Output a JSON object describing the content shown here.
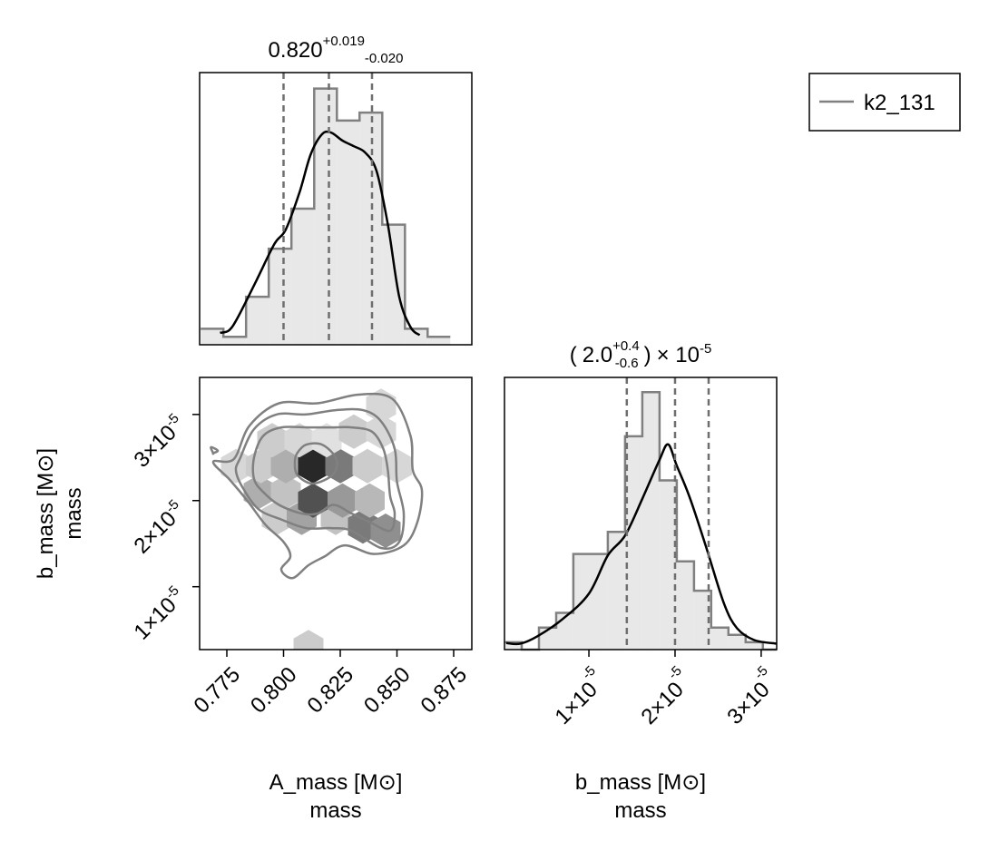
{
  "legend": {
    "label": "k2_131",
    "color": "#808080"
  },
  "chart_data": [
    {
      "type": "histogram",
      "panel": "A_mass marginal",
      "title": {
        "value": "0.820",
        "plus": "+0.019",
        "minus": "-0.020"
      },
      "xlim": [
        0.763,
        0.883
      ],
      "bin_edges": [
        0.7635,
        0.7735,
        0.7835,
        0.7935,
        0.8035,
        0.8135,
        0.8235,
        0.8335,
        0.8435,
        0.8535,
        0.8635,
        0.8735
      ],
      "bin_heights": [
        2,
        1,
        6,
        12,
        17,
        32,
        28,
        29,
        15,
        2,
        1
      ],
      "kde": [
        [
          0.772,
          1.5
        ],
        [
          0.776,
          1.8
        ],
        [
          0.78,
          3.5
        ],
        [
          0.788,
          8
        ],
        [
          0.796,
          12.6
        ],
        [
          0.801,
          14.4
        ],
        [
          0.807,
          19
        ],
        [
          0.812,
          23.8
        ],
        [
          0.817,
          26.3
        ],
        [
          0.821,
          26.5
        ],
        [
          0.826,
          25.5
        ],
        [
          0.831,
          24.8
        ],
        [
          0.836,
          24
        ],
        [
          0.841,
          21.7
        ],
        [
          0.846,
          15
        ],
        [
          0.851,
          6
        ],
        [
          0.856,
          2.2
        ],
        [
          0.86,
          1.2
        ]
      ],
      "quantile_lines": [
        0.8,
        0.82,
        0.839
      ],
      "color": "#808080"
    },
    {
      "type": "heatmap",
      "panel": "A_mass vs b_mass joint",
      "hexbin_cells": [
        {
          "x": 0.811,
          "y": 3e-06,
          "density": 0.15
        },
        {
          "x": 0.797,
          "y": 1.8e-05,
          "density": 0.15
        },
        {
          "x": 0.808,
          "y": 1.8e-05,
          "density": 0.35
        },
        {
          "x": 0.823,
          "y": 1.8e-05,
          "density": 0.2
        },
        {
          "x": 0.835,
          "y": 1.7e-05,
          "density": 0.55
        },
        {
          "x": 0.845,
          "y": 1.65e-05,
          "density": 0.45
        },
        {
          "x": 0.789,
          "y": 2.1e-05,
          "density": 0.3
        },
        {
          "x": 0.801,
          "y": 2.1e-05,
          "density": 0.2
        },
        {
          "x": 0.813,
          "y": 2e-05,
          "density": 0.75
        },
        {
          "x": 0.826,
          "y": 2e-05,
          "density": 0.4
        },
        {
          "x": 0.838,
          "y": 2e-05,
          "density": 0.25
        },
        {
          "x": 0.779,
          "y": 2.4e-05,
          "density": 0.1
        },
        {
          "x": 0.79,
          "y": 2.4e-05,
          "density": 0.15
        },
        {
          "x": 0.801,
          "y": 2.4e-05,
          "density": 0.3
        },
        {
          "x": 0.813,
          "y": 2.4e-05,
          "density": 0.95
        },
        {
          "x": 0.825,
          "y": 2.4e-05,
          "density": 0.55
        },
        {
          "x": 0.837,
          "y": 2.4e-05,
          "density": 0.15
        },
        {
          "x": 0.85,
          "y": 2.4e-05,
          "density": 0.1
        },
        {
          "x": 0.795,
          "y": 2.7e-05,
          "density": 0.15
        },
        {
          "x": 0.807,
          "y": 2.7e-05,
          "density": 0.1
        },
        {
          "x": 0.819,
          "y": 2.7e-05,
          "density": 0.05
        },
        {
          "x": 0.831,
          "y": 2.8e-05,
          "density": 0.15
        },
        {
          "x": 0.843,
          "y": 2.8e-05,
          "density": 0.1
        },
        {
          "x": 0.843,
          "y": 3.1e-05,
          "density": 0.1
        }
      ],
      "contours": [
        [
          [
            0.806,
            2.55e-05
          ],
          [
            0.81,
            2.65e-05
          ],
          [
            0.817,
            2.65e-05
          ],
          [
            0.823,
            2.5e-05
          ],
          [
            0.823,
            2.35e-05
          ],
          [
            0.819,
            2.25e-05
          ],
          [
            0.812,
            2.2e-05
          ],
          [
            0.806,
            2.3e-05
          ],
          [
            0.805,
            2.45e-05
          ]
        ],
        [
          [
            0.787,
            2.5e-05
          ],
          [
            0.791,
            2.75e-05
          ],
          [
            0.799,
            2.85e-05
          ],
          [
            0.811,
            2.85e-05
          ],
          [
            0.822,
            2.85e-05
          ],
          [
            0.83,
            2.85e-05
          ],
          [
            0.839,
            2.8e-05
          ],
          [
            0.844,
            2.6e-05
          ],
          [
            0.846,
            2.35e-05
          ],
          [
            0.847,
            2.05e-05
          ],
          [
            0.849,
            1.85e-05
          ],
          [
            0.847,
            1.65e-05
          ],
          [
            0.838,
            1.75e-05
          ],
          [
            0.83,
            1.85e-05
          ],
          [
            0.822,
            1.95e-05
          ],
          [
            0.815,
            1.85e-05
          ],
          [
            0.808,
            1.85e-05
          ],
          [
            0.798,
            1.95e-05
          ],
          [
            0.791,
            2.1e-05
          ],
          [
            0.787,
            2.25e-05
          ]
        ],
        [
          [
            0.781,
            2.5e-05
          ],
          [
            0.787,
            2.83e-05
          ],
          [
            0.797,
            3e-05
          ],
          [
            0.81,
            3e-05
          ],
          [
            0.823,
            3.05e-05
          ],
          [
            0.835,
            3.05e-05
          ],
          [
            0.843,
            2.92e-05
          ],
          [
            0.849,
            2.6e-05
          ],
          [
            0.85,
            2.22e-05
          ],
          [
            0.853,
            1.85e-05
          ],
          [
            0.851,
            1.52e-05
          ],
          [
            0.843,
            1.45e-05
          ],
          [
            0.83,
            1.65e-05
          ],
          [
            0.821,
            1.68e-05
          ],
          [
            0.81,
            1.68e-05
          ],
          [
            0.799,
            1.78e-05
          ],
          [
            0.789,
            1.9e-05
          ],
          [
            0.782,
            2.15e-05
          ],
          [
            0.779,
            2.35e-05
          ]
        ],
        [
          [
            0.778,
            2.48e-05
          ],
          [
            0.785,
            2.87e-05
          ],
          [
            0.798,
            3.13e-05
          ],
          [
            0.815,
            3.13e-05
          ],
          [
            0.833,
            3.23e-05
          ],
          [
            0.848,
            3.18e-05
          ],
          [
            0.856,
            2.75e-05
          ],
          [
            0.857,
            2.35e-05
          ],
          [
            0.861,
            2.12e-05
          ],
          [
            0.859,
            1.75e-05
          ],
          [
            0.853,
            1.48e-05
          ],
          [
            0.84,
            1.38e-05
          ],
          [
            0.827,
            1.48e-05
          ],
          [
            0.818,
            1.35e-05
          ],
          [
            0.811,
            1.25e-05
          ],
          [
            0.804,
            1.1e-05
          ],
          [
            0.799,
            1.2e-05
          ],
          [
            0.803,
            1.35e-05
          ],
          [
            0.8,
            1.52e-05
          ],
          [
            0.792,
            1.72e-05
          ],
          [
            0.784,
            2e-05
          ],
          [
            0.776,
            2.25e-05
          ],
          [
            0.769,
            2.45e-05
          ]
        ],
        [
          [
            0.769,
            2.55e-05
          ],
          [
            0.768,
            2.62e-05
          ],
          [
            0.771,
            2.58e-05
          ],
          [
            0.769,
            2.55e-05
          ]
        ]
      ],
      "xlim": [
        0.763,
        0.883
      ],
      "ylim": [
        2.7e-06,
        3.43e-05
      ],
      "color": "#808080"
    },
    {
      "type": "histogram",
      "panel": "b_mass marginal",
      "title": {
        "open": "(",
        "value": "2.0",
        "plus": "+0.4",
        "minus": "-0.6",
        "close": ")",
        "scale": "× 10",
        "exponent": "-5"
      },
      "xlim": [
        2e-07,
        3.18e-05
      ],
      "bin_edges": [
        2e-07,
        2.2e-06,
        4.2e-06,
        6.2e-06,
        8.2e-06,
        1.02e-05,
        1.22e-05,
        1.42e-05,
        1.62e-05,
        1.82e-05,
        2.02e-05,
        2.22e-05,
        2.42e-05,
        2.62e-05,
        2.82e-05,
        3.02e-05,
        3.22e-05
      ],
      "bin_heights": [
        1,
        0,
        3,
        5,
        13,
        13,
        16,
        29,
        35,
        23,
        12,
        8,
        3,
        2,
        1,
        0
      ],
      "kde": [
        [
          4e-07,
          0.9
        ],
        [
          2e-06,
          0.8
        ],
        [
          4e-06,
          1.8
        ],
        [
          7e-06,
          4.2
        ],
        [
          1e-05,
          7.6
        ],
        [
          1.22e-05,
          12.8
        ],
        [
          1.42e-05,
          15.5
        ],
        [
          1.62e-05,
          20.5
        ],
        [
          1.82e-05,
          25.8
        ],
        [
          1.92e-05,
          27.9
        ],
        [
          2.02e-05,
          25
        ],
        [
          2.17e-05,
          20.7
        ],
        [
          2.37e-05,
          13.6
        ],
        [
          2.57e-05,
          6.2
        ],
        [
          2.72e-05,
          2.9
        ],
        [
          2.92e-05,
          1.3
        ],
        [
          3.18e-05,
          0.8
        ]
      ],
      "quantile_lines": [
        1.44e-05,
        2e-05,
        2.39e-05
      ],
      "color": "#808080"
    }
  ],
  "axes": {
    "a_mass": {
      "ticks": [
        {
          "value": 0.775,
          "label": "0.775"
        },
        {
          "value": 0.8,
          "label": "0.800"
        },
        {
          "value": 0.825,
          "label": "0.825"
        },
        {
          "value": 0.85,
          "label": "0.850"
        },
        {
          "value": 0.875,
          "label": "0.875"
        }
      ],
      "label_line1": "A_mass [M⊙]",
      "label_line2": "mass"
    },
    "b_mass": {
      "ticks": [
        {
          "value": 1e-05,
          "base": "1×10",
          "exp": "-5"
        },
        {
          "value": 2e-05,
          "base": "2×10",
          "exp": "-5"
        },
        {
          "value": 3e-05,
          "base": "3×10",
          "exp": "-5"
        }
      ],
      "label_line1": "b_mass [M⊙]",
      "label_line2": "mass"
    }
  }
}
